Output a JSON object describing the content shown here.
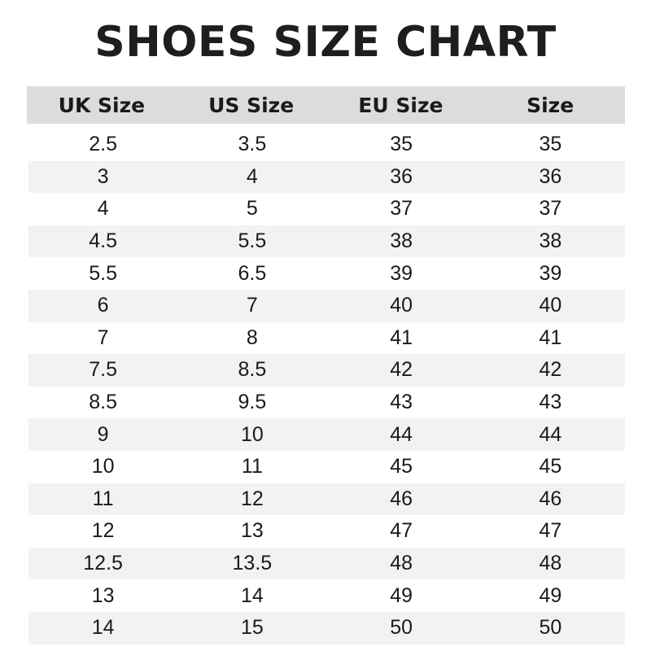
{
  "title": "SHOES SIZE CHART",
  "chart_data": {
    "type": "table",
    "title": "SHOES SIZE CHART",
    "columns": [
      "UK Size",
      "US Size",
      "EU Size",
      "Size"
    ],
    "rows": [
      [
        "2.5",
        "3.5",
        "35",
        "35"
      ],
      [
        "3",
        "4",
        "36",
        "36"
      ],
      [
        "4",
        "5",
        "37",
        "37"
      ],
      [
        "4.5",
        "5.5",
        "38",
        "38"
      ],
      [
        "5.5",
        "6.5",
        "39",
        "39"
      ],
      [
        "6",
        "7",
        "40",
        "40"
      ],
      [
        "7",
        "8",
        "41",
        "41"
      ],
      [
        "7.5",
        "8.5",
        "42",
        "42"
      ],
      [
        "8.5",
        "9.5",
        "43",
        "43"
      ],
      [
        "9",
        "10",
        "44",
        "44"
      ],
      [
        "10",
        "11",
        "45",
        "45"
      ],
      [
        "11",
        "12",
        "46",
        "46"
      ],
      [
        "12",
        "13",
        "47",
        "47"
      ],
      [
        "12.5",
        "13.5",
        "48",
        "48"
      ],
      [
        "13",
        "14",
        "49",
        "49"
      ],
      [
        "14",
        "15",
        "50",
        "50"
      ]
    ],
    "colors": {
      "header_bg": "#dcdcdc",
      "stripe_bg": "#f2f2f2"
    }
  }
}
